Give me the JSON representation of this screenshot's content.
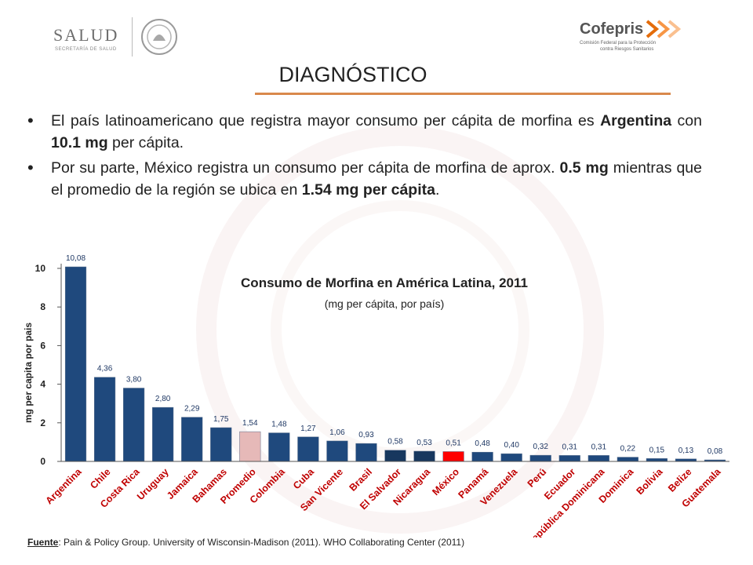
{
  "header": {
    "salud_logo_text": "SALUD",
    "salud_logo_subtext": "SECRETARÍA DE SALUD",
    "cofepris_logo_text": "Cofepris",
    "cofepris_logo_sub1": "Comisión Federal para la Protección",
    "cofepris_logo_sub2": "contra Riesgos Sanitarios"
  },
  "title": "DIAGNÓSTICO",
  "bullets": [
    {
      "parts": [
        {
          "t": "El país latinoamericano que registra mayor consumo per cápita de morfina es ",
          "b": false
        },
        {
          "t": "Argentina",
          "b": true
        },
        {
          "t": " con ",
          "b": false
        },
        {
          "t": "10.1 mg",
          "b": true
        },
        {
          "t": " per cápita.",
          "b": false
        }
      ]
    },
    {
      "parts": [
        {
          "t": "Por su parte, México registra un consumo per cápita de morfina de aprox. ",
          "b": false
        },
        {
          "t": "0.5 mg",
          "b": true
        },
        {
          "t": " mientras que el promedio de la región se ubica en ",
          "b": false
        },
        {
          "t": "1.54 mg per cápita",
          "b": true
        },
        {
          "t": ".",
          "b": false
        }
      ]
    }
  ],
  "chart_data": {
    "type": "bar",
    "title": "Consumo de Morfina en América Latina, 2011",
    "subtitle": "(mg per cápita, por país)",
    "ylabel": "mg per capita por pais",
    "ylim": [
      0,
      10
    ],
    "yticks": [
      0,
      2,
      4,
      6,
      8,
      10
    ],
    "grid": false,
    "categories": [
      "Argentina",
      "Chile",
      "Costa Rica",
      "Uruguay",
      "Jamaica",
      "Bahamas",
      "Promedio",
      "Colombia",
      "Cuba",
      "San Vicente",
      "Brasil",
      "El Salvador",
      "Nicaragua",
      "México",
      "Panamá",
      "Venezuela",
      "Perú",
      "Ecuador",
      "República Dominicana",
      "Dominica",
      "Bolivia",
      "Belize",
      "Guatemala"
    ],
    "values": [
      10.08,
      4.36,
      3.8,
      2.8,
      2.29,
      1.75,
      1.54,
      1.48,
      1.27,
      1.06,
      0.93,
      0.58,
      0.53,
      0.51,
      0.48,
      0.4,
      0.32,
      0.31,
      0.31,
      0.22,
      0.15,
      0.13,
      0.08
    ],
    "value_labels": [
      "10,08",
      "4,36",
      "3,80",
      "2,80",
      "2,29",
      "1,75",
      "1,54",
      "1,48",
      "1,27",
      "1,06",
      "0,93",
      "0,58",
      "0,53",
      "0,51",
      "0,48",
      "0,40",
      "0,32",
      "0,31",
      "0,31",
      "0,22",
      "0,15",
      "0,13",
      "0,08"
    ],
    "colors": {
      "default": "#1f497d",
      "Promedio": "#e6b9b8",
      "México": "#ff0000",
      "El Salvador": "#17375e",
      "Nicaragua": "#17375e",
      "label": "#1f3864"
    }
  },
  "source": {
    "label": "Fuente",
    "text": ": Pain & Policy Group. University of Wisconsin-Madison (2011). WHO Collaborating Center (2011)"
  }
}
